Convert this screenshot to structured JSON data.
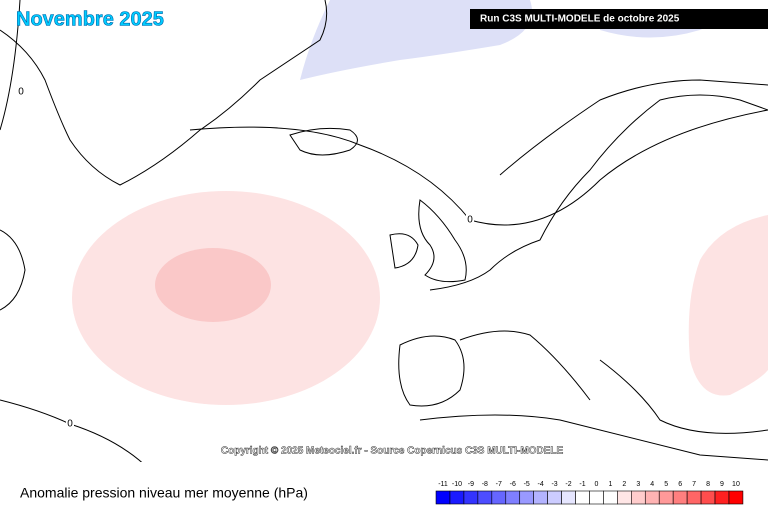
{
  "header": {
    "title": "Novembre 2025",
    "run": "Run C3S MULTI-MODELE de octobre 2025"
  },
  "map": {
    "contour_labels": [
      "0",
      "0",
      "0"
    ],
    "copyright": "Copyright © 2025 Meteociel.fr - Source Copernicus C3S MULTI-MODELE"
  },
  "footer": {
    "caption": "Anomalie pression niveau mer moyenne (hPa)"
  },
  "legend": {
    "ticks": [
      -11,
      -10,
      -9,
      -8,
      -7,
      -6,
      -5,
      -4,
      -3,
      -2,
      -1,
      0,
      1,
      2,
      3,
      4,
      5,
      6,
      7,
      8,
      9,
      10
    ],
    "colors": [
      "#0000ff",
      "#1a1aff",
      "#3333ff",
      "#4d4dff",
      "#6666ff",
      "#7f7fff",
      "#9999ff",
      "#b3b3ff",
      "#ccccff",
      "#e6e6ff",
      "#ffffff",
      "#ffffff",
      "#ffffff",
      "#ffe6e6",
      "#ffcccc",
      "#ffb3b3",
      "#ff9999",
      "#ff7f7f",
      "#ff6666",
      "#ff4d4d",
      "#ff2020",
      "#ff0000"
    ]
  }
}
